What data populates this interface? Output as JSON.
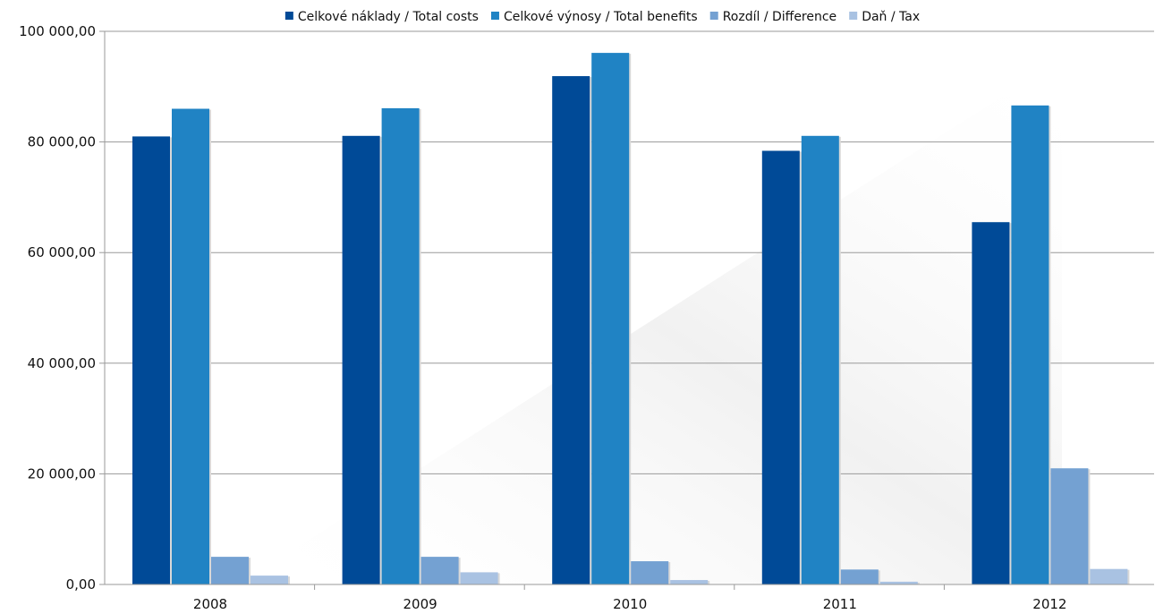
{
  "chart_data": {
    "type": "bar",
    "title": "",
    "xlabel": "",
    "ylabel": "",
    "categories": [
      "2008",
      "2009",
      "2010",
      "2011",
      "2012"
    ],
    "series": [
      {
        "name": "Celkové náklady / Total costs",
        "color": "#004a97",
        "values": [
          81000,
          81100,
          91900,
          78400,
          65500
        ]
      },
      {
        "name": "Celkové výnosy / Total benefits",
        "color": "#2083c4",
        "values": [
          86000,
          86100,
          96100,
          81100,
          86600
        ]
      },
      {
        "name": "Rozdíl / Difference",
        "color": "#74a1d2",
        "values": [
          5000,
          5000,
          4200,
          2700,
          21000
        ]
      },
      {
        "name": "Daň / Tax",
        "color": "#a9c2e2",
        "values": [
          1600,
          2200,
          800,
          500,
          2800
        ]
      }
    ],
    "ylim": [
      0,
      100000
    ],
    "yticks": [
      0,
      20000,
      40000,
      60000,
      80000,
      100000
    ],
    "ytick_labels": [
      "0,00",
      "20 000,00",
      "40 000,00",
      "60 000,00",
      "80 000,00",
      "100 000,00"
    ],
    "grid": true,
    "legend_position": "top"
  }
}
